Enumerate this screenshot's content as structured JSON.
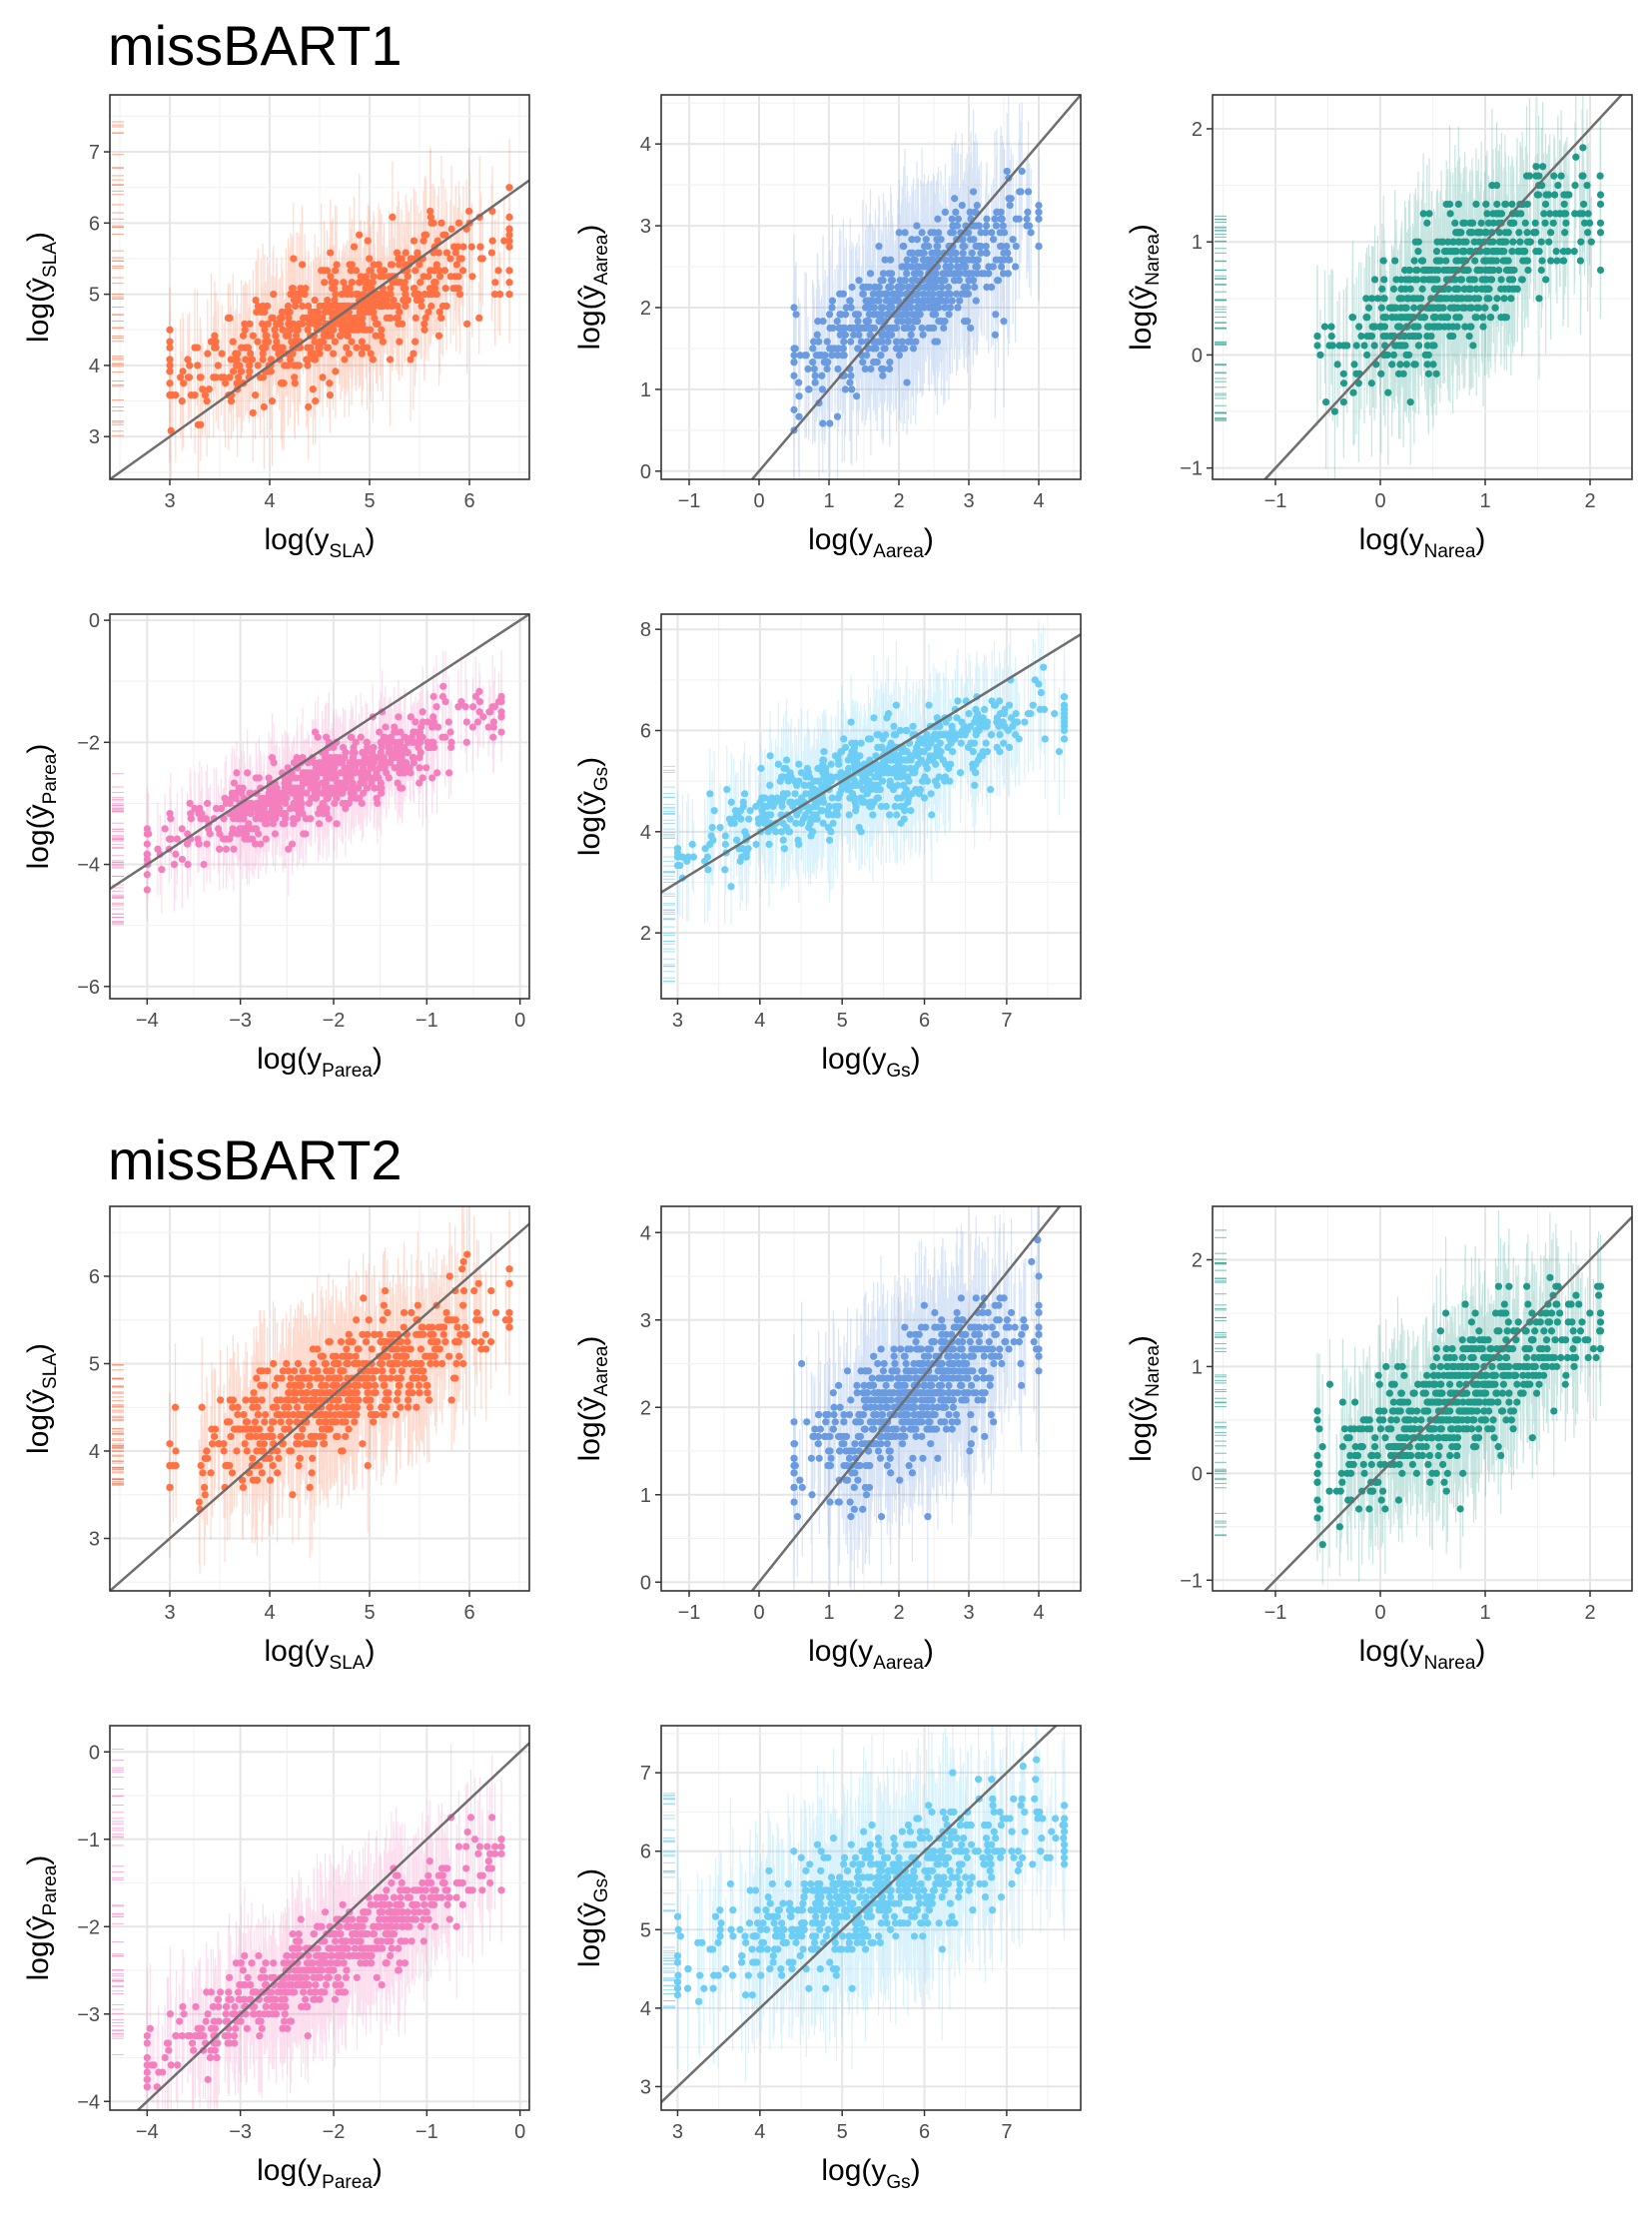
{
  "sections": [
    {
      "title": "missBART1"
    },
    {
      "title": "missBART2"
    }
  ],
  "colors": {
    "SLA": "#ff7043",
    "Aarea": "#6a9be0",
    "Narea": "#1f9a8a",
    "Parea": "#f47fbf",
    "Gs": "#6ccdf5",
    "identity_line": "#6e6e6e",
    "panel_border": "#333333",
    "grid_major": "#e6e6e6",
    "grid_minor": "#f2f2f2"
  },
  "chart_data": [
    {
      "id": "b1_sla",
      "section": 0,
      "type": "scatter",
      "variable": "SLA",
      "xlabel_base": "log(y",
      "xlabel_sub": "SLA",
      "ylabel_sub": "SLA",
      "xlim": [
        2.4,
        6.6
      ],
      "ylim": [
        2.4,
        7.8
      ],
      "xticks": [
        3,
        4,
        5,
        6
      ],
      "yticks": [
        3,
        4,
        5,
        6,
        7
      ],
      "cloud": {
        "xrange": [
          3.0,
          6.4
        ],
        "center_slope": 0.6,
        "center_intercept": 1.9,
        "spread": 0.45,
        "err": 0.8
      },
      "rug": {
        "ymin": 2.9,
        "ymax": 7.5
      }
    },
    {
      "id": "b1_aarea",
      "section": 0,
      "type": "scatter",
      "variable": "Aarea",
      "xlabel_base": "log(y",
      "xlabel_sub": "Aarea",
      "ylabel_sub": "Aarea",
      "xlim": [
        -1.4,
        4.6
      ],
      "ylim": [
        -0.1,
        4.6
      ],
      "xticks": [
        -1,
        0,
        1,
        2,
        3,
        4
      ],
      "yticks": [
        0,
        1,
        2,
        3,
        4
      ],
      "cloud": {
        "xrange": [
          0.5,
          4.0
        ],
        "center_slope": 0.55,
        "center_intercept": 0.95,
        "spread": 0.45,
        "err": 0.9
      },
      "rug": null
    },
    {
      "id": "b1_narea",
      "section": 0,
      "type": "scatter",
      "variable": "Narea",
      "xlabel_base": "log(y",
      "xlabel_sub": "Narea",
      "ylabel_sub": "Narea",
      "xlim": [
        -1.6,
        2.4
      ],
      "ylim": [
        -1.1,
        2.3
      ],
      "xticks": [
        -1,
        0,
        1,
        2
      ],
      "yticks": [
        -1,
        0,
        1,
        2
      ],
      "cloud": {
        "xrange": [
          -0.6,
          2.1
        ],
        "center_slope": 0.55,
        "center_intercept": 0.25,
        "spread": 0.35,
        "err": 0.6
      },
      "rug": {
        "ymin": -0.6,
        "ymax": 1.3
      }
    },
    {
      "id": "b1_parea",
      "section": 0,
      "type": "scatter",
      "variable": "Parea",
      "xlabel_base": "log(y",
      "xlabel_sub": "Parea",
      "ylabel_sub": "Parea",
      "xlim": [
        -4.4,
        0.1
      ],
      "ylim": [
        -6.2,
        0.1
      ],
      "xticks": [
        -4,
        -3,
        -2,
        -1,
        0
      ],
      "yticks": [
        -6,
        -4,
        -2,
        0
      ],
      "cloud": {
        "xrange": [
          -4.0,
          -0.2
        ],
        "center_slope": 0.6,
        "center_intercept": -1.4,
        "spread": 0.35,
        "err": 0.7
      },
      "rug": {
        "ymin": -5.0,
        "ymax": -2.5
      }
    },
    {
      "id": "b1_gs",
      "section": 0,
      "type": "scatter",
      "variable": "Gs",
      "xlabel_base": "log(y",
      "xlabel_sub": "Gs",
      "ylabel_sub": "Gs",
      "xlim": [
        2.8,
        7.9
      ],
      "ylim": [
        0.7,
        8.3
      ],
      "xticks": [
        3,
        4,
        5,
        6,
        7
      ],
      "yticks": [
        2,
        4,
        6,
        8
      ],
      "cloud": {
        "xrange": [
          3.0,
          7.7
        ],
        "center_slope": 0.6,
        "center_intercept": 1.9,
        "spread": 0.55,
        "err": 1.1
      },
      "rug": {
        "ymin": 1.0,
        "ymax": 5.3
      }
    },
    {
      "id": "b2_sla",
      "section": 1,
      "type": "scatter",
      "variable": "SLA",
      "xlabel_base": "log(y",
      "xlabel_sub": "SLA",
      "ylabel_sub": "SLA",
      "xlim": [
        2.4,
        6.6
      ],
      "ylim": [
        2.4,
        6.8
      ],
      "xticks": [
        3,
        4,
        5,
        6
      ],
      "yticks": [
        3,
        4,
        5,
        6
      ],
      "cloud": {
        "xrange": [
          3.0,
          6.4
        ],
        "center_slope": 0.55,
        "center_intercept": 2.1,
        "spread": 0.4,
        "err": 0.75
      },
      "rug": {
        "ymin": 3.6,
        "ymax": 5.0
      }
    },
    {
      "id": "b2_aarea",
      "section": 1,
      "type": "scatter",
      "variable": "Aarea",
      "xlabel_base": "log(y",
      "xlabel_sub": "Aarea",
      "ylabel_sub": "Aarea",
      "xlim": [
        -1.4,
        4.6
      ],
      "ylim": [
        -0.1,
        4.3
      ],
      "xticks": [
        -1,
        0,
        1,
        2,
        3,
        4
      ],
      "yticks": [
        0,
        1,
        2,
        3,
        4
      ],
      "cloud": {
        "xrange": [
          0.5,
          4.0
        ],
        "center_slope": 0.5,
        "center_intercept": 1.05,
        "spread": 0.45,
        "err": 0.9
      },
      "rug": null
    },
    {
      "id": "b2_narea",
      "section": 1,
      "type": "scatter",
      "variable": "Narea",
      "xlabel_base": "log(y",
      "xlabel_sub": "Narea",
      "ylabel_sub": "Narea",
      "xlim": [
        -1.6,
        2.4
      ],
      "ylim": [
        -1.1,
        2.5
      ],
      "xticks": [
        -1,
        0,
        1,
        2
      ],
      "yticks": [
        -1,
        0,
        1,
        2
      ],
      "cloud": {
        "xrange": [
          -0.6,
          2.1
        ],
        "center_slope": 0.55,
        "center_intercept": 0.3,
        "spread": 0.35,
        "err": 0.6
      },
      "rug": {
        "ymin": -0.6,
        "ymax": 2.3
      }
    },
    {
      "id": "b2_parea",
      "section": 1,
      "type": "scatter",
      "variable": "Parea",
      "xlabel_base": "log(y",
      "xlabel_sub": "Parea",
      "ylabel_sub": "Parea",
      "xlim": [
        -4.4,
        0.1
      ],
      "ylim": [
        -4.1,
        0.3
      ],
      "xticks": [
        -4,
        -3,
        -2,
        -1,
        0
      ],
      "yticks": [
        -4,
        -3,
        -2,
        -1,
        0
      ],
      "cloud": {
        "xrange": [
          -4.0,
          -0.2
        ],
        "center_slope": 0.65,
        "center_intercept": -1.0,
        "spread": 0.3,
        "err": 0.7
      },
      "rug": {
        "ymin": -3.5,
        "ymax": 0.1
      }
    },
    {
      "id": "b2_gs",
      "section": 1,
      "type": "scatter",
      "variable": "Gs",
      "xlabel_base": "log(y",
      "xlabel_sub": "Gs",
      "ylabel_sub": "Gs",
      "xlim": [
        2.8,
        7.9
      ],
      "ylim": [
        2.7,
        7.6
      ],
      "xticks": [
        3,
        4,
        5,
        6,
        7
      ],
      "yticks": [
        3,
        4,
        5,
        6,
        7
      ],
      "cloud": {
        "xrange": [
          3.0,
          7.7
        ],
        "center_slope": 0.4,
        "center_intercept": 3.3,
        "spread": 0.45,
        "err": 1.0
      },
      "rug": {
        "ymin": 4.0,
        "ymax": 6.8
      }
    }
  ]
}
